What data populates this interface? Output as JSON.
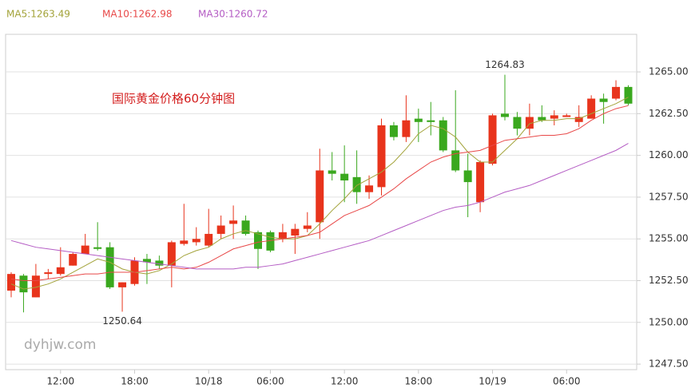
{
  "chart_data": {
    "type": "candlestick",
    "title": "国际黄金价格60分钟图",
    "watermark": "dyhjw.com",
    "up_color": "#e8341c",
    "down_color": "#3aa81e",
    "categories": [
      null,
      null,
      null,
      null,
      "12:00",
      null,
      null,
      null,
      null,
      null,
      "18:00",
      null,
      null,
      null,
      null,
      null,
      "10/18",
      null,
      null,
      null,
      null,
      "06:00",
      null,
      null,
      null,
      null,
      null,
      "12:00",
      null,
      null,
      null,
      null,
      null,
      "18:00",
      null,
      null,
      null,
      null,
      null,
      "10/19",
      null,
      null,
      null,
      null,
      null,
      "06:00",
      null,
      null,
      null,
      null,
      null
    ],
    "open": [
      1251.9,
      1252.8,
      1251.5,
      1252.9,
      1252.9,
      1253.4,
      1254.1,
      1254.5,
      1254.5,
      1252.1,
      1252.3,
      1253.8,
      1253.7,
      1253.4,
      1254.7,
      1254.8,
      1254.6,
      1255.3,
      1255.9,
      1256.1,
      1255.4,
      1255.4,
      1255.0,
      1255.2,
      1255.6,
      1256.0,
      1259.1,
      1258.9,
      1258.7,
      1257.8,
      1258.1,
      1261.8,
      1261.1,
      1262.2,
      1262.1,
      1262.1,
      1260.3,
      1259.1,
      1257.2,
      1259.5,
      1262.5,
      1262.3,
      1261.6,
      1262.3,
      1262.2,
      1262.3,
      1262.0,
      1262.2,
      1263.4,
      1263.4,
      1264.1
    ],
    "high": [
      1253.0,
      1252.9,
      1253.5,
      1253.2,
      1254.5,
      1254.2,
      1255.3,
      1256.0,
      1254.8,
      1252.4,
      1253.9,
      1254.1,
      1254.0,
      1254.9,
      1257.1,
      1255.7,
      1256.8,
      1256.4,
      1257.0,
      1256.4,
      1255.5,
      1255.5,
      1255.9,
      1255.9,
      1256.6,
      1260.4,
      1260.2,
      1260.6,
      1260.3,
      1258.8,
      1262.2,
      1262.0,
      1263.6,
      1262.8,
      1263.2,
      1262.3,
      1263.9,
      1260.1,
      1259.7,
      1262.5,
      1264.83,
      1262.6,
      1263.1,
      1263.0,
      1262.7,
      1262.5,
      1263.0,
      1263.6,
      1263.7,
      1264.5,
      1264.2
    ],
    "low": [
      1251.5,
      1250.6,
      1251.5,
      1252.6,
      1252.8,
      1253.4,
      1254.1,
      1254.3,
      1252.0,
      1250.64,
      1252.2,
      1252.3,
      1253.2,
      1252.1,
      1254.6,
      1254.6,
      1254.5,
      1255.0,
      1255.0,
      1255.2,
      1253.2,
      1254.2,
      1254.8,
      1254.1,
      1255.4,
      1255.0,
      1258.5,
      1257.2,
      1257.1,
      1257.4,
      1257.6,
      1260.9,
      1260.8,
      1260.8,
      1261.2,
      1260.2,
      1259.0,
      1256.3,
      1256.6,
      1259.4,
      1262.1,
      1261.2,
      1261.2,
      1262.0,
      1261.8,
      1262.3,
      1261.7,
      1262.2,
      1261.9,
      1263.3,
      1263.0
    ],
    "close": [
      1252.9,
      1251.8,
      1252.8,
      1253.0,
      1253.3,
      1254.1,
      1254.6,
      1254.4,
      1252.1,
      1252.4,
      1253.7,
      1253.6,
      1253.4,
      1254.8,
      1254.9,
      1255.0,
      1255.3,
      1255.8,
      1256.1,
      1255.3,
      1254.4,
      1254.3,
      1255.4,
      1255.6,
      1255.8,
      1259.1,
      1258.9,
      1258.5,
      1257.8,
      1258.2,
      1261.8,
      1261.1,
      1262.1,
      1262.0,
      1262.0,
      1260.3,
      1259.1,
      1258.4,
      1259.6,
      1262.4,
      1262.3,
      1261.6,
      1262.3,
      1262.1,
      1262.4,
      1262.4,
      1262.3,
      1263.4,
      1263.2,
      1264.1,
      1263.1
    ],
    "series": [
      {
        "name": "MA5:1263.49",
        "color": "#a3a33a",
        "values": [
          1252.3,
          1252.0,
          1252.1,
          1252.3,
          1252.6,
          1253.0,
          1253.4,
          1253.8,
          1253.6,
          1253.2,
          1253.0,
          1252.9,
          1253.1,
          1253.5,
          1254.0,
          1254.3,
          1254.5,
          1255.0,
          1255.3,
          1255.5,
          1255.3,
          1255.1,
          1255.0,
          1255.0,
          1255.2,
          1255.9,
          1256.7,
          1257.4,
          1258.2,
          1258.6,
          1259.0,
          1259.6,
          1260.4,
          1261.3,
          1261.8,
          1261.6,
          1261.1,
          1260.2,
          1259.6,
          1259.6,
          1260.3,
          1261.0,
          1261.9,
          1262.1,
          1262.1,
          1262.2,
          1262.2,
          1262.5,
          1262.8,
          1263.1,
          1263.49
        ]
      },
      {
        "name": "MA10:1262.98",
        "color": "#e84848",
        "values": [
          1252.6,
          1252.5,
          1252.5,
          1252.6,
          1252.7,
          1252.8,
          1252.9,
          1252.9,
          1253.0,
          1253.0,
          1253.0,
          1253.1,
          1253.2,
          1253.3,
          1253.2,
          1253.3,
          1253.6,
          1254.0,
          1254.4,
          1254.6,
          1254.8,
          1254.9,
          1255.0,
          1255.1,
          1255.2,
          1255.4,
          1255.9,
          1256.4,
          1256.7,
          1257.0,
          1257.5,
          1258.0,
          1258.6,
          1259.1,
          1259.6,
          1259.9,
          1260.1,
          1260.2,
          1260.3,
          1260.6,
          1260.9,
          1261.0,
          1261.1,
          1261.2,
          1261.2,
          1261.3,
          1261.6,
          1262.1,
          1262.5,
          1262.8,
          1262.98
        ]
      },
      {
        "name": "MA30:1260.72",
        "color": "#b45cc4",
        "values": [
          1254.9,
          1254.7,
          1254.5,
          1254.4,
          1254.3,
          1254.2,
          1254.1,
          1254.0,
          1253.9,
          1253.8,
          1253.7,
          1253.6,
          1253.5,
          1253.4,
          1253.3,
          1253.2,
          1253.2,
          1253.2,
          1253.2,
          1253.3,
          1253.3,
          1253.4,
          1253.5,
          1253.7,
          1253.9,
          1254.1,
          1254.3,
          1254.5,
          1254.7,
          1254.9,
          1255.2,
          1255.5,
          1255.8,
          1256.1,
          1256.4,
          1256.7,
          1256.9,
          1257.0,
          1257.2,
          1257.5,
          1257.8,
          1258.0,
          1258.2,
          1258.5,
          1258.8,
          1259.1,
          1259.4,
          1259.7,
          1260.0,
          1260.3,
          1260.72
        ]
      }
    ],
    "annotations": [
      {
        "index": 40,
        "of": "high"
      },
      {
        "index": 9,
        "of": "low"
      }
    ],
    "ylim": [
      1247.17,
      1267.25
    ],
    "yticks": [
      {
        "value": 1247.5,
        "label": "1247.50"
      },
      {
        "value": 1250,
        "label": "1250.00"
      },
      {
        "value": 1252.5,
        "label": "1252.50"
      },
      {
        "value": 1255,
        "label": "1255.00"
      },
      {
        "value": 1257.5,
        "label": "1257.50"
      },
      {
        "value": 1260,
        "label": "1260.00"
      },
      {
        "value": 1262.5,
        "label": "1262.50"
      },
      {
        "value": 1265,
        "label": "1265.00"
      }
    ],
    "grid": true
  }
}
